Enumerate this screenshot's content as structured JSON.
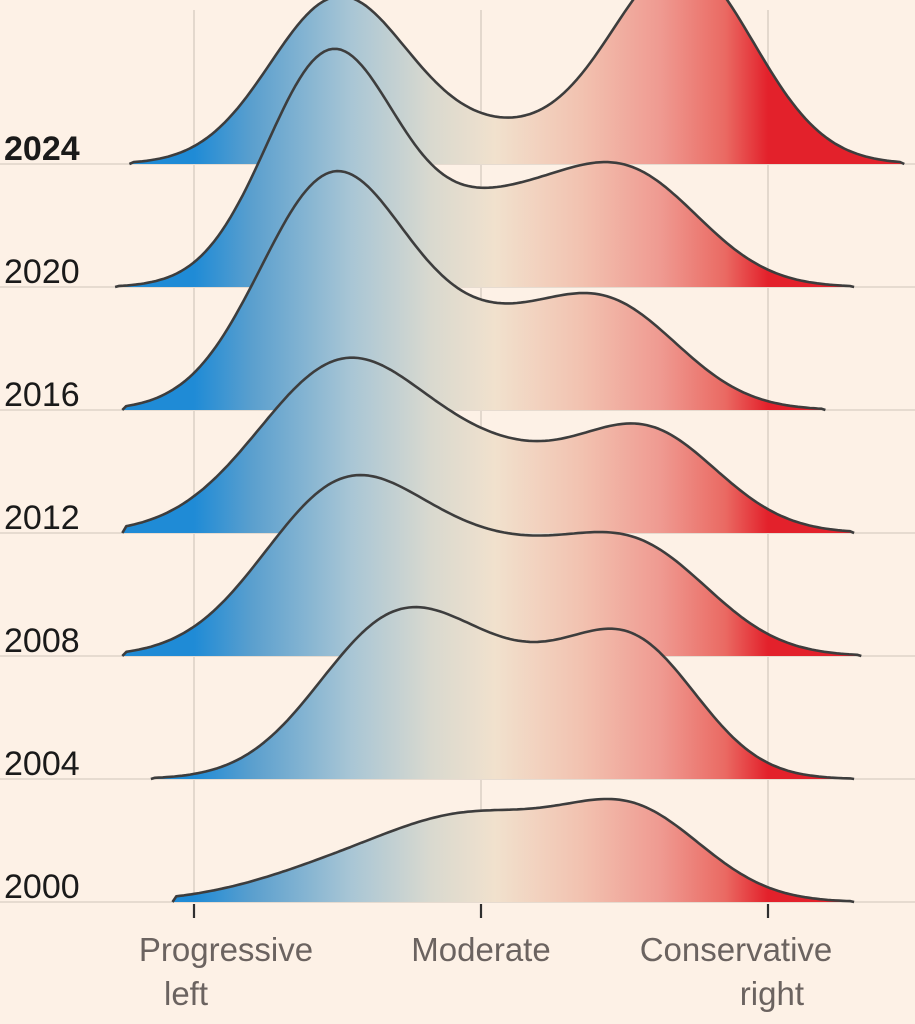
{
  "chart_data": {
    "type": "ridgeline",
    "title": "",
    "x_axis": {
      "range": [
        -1.1,
        1.45
      ],
      "ticks": [
        {
          "value": -0.4,
          "label_lines": [
            "Progressive",
            "left"
          ],
          "align": "left"
        },
        {
          "value": 0.0,
          "label_lines": [
            "Moderate"
          ],
          "align": "center"
        },
        {
          "value": 0.4,
          "label_lines": [
            "Conservative",
            "right"
          ],
          "align": "right"
        }
      ]
    },
    "colors": {
      "left": "#1f8bd6",
      "mid_left": "#b8cdd6",
      "center": "#f1e0cc",
      "mid_right": "#ef9d94",
      "right": "#e3212b",
      "outline": "#3d3d3d"
    },
    "gradient_stops": [
      {
        "x": -0.4,
        "color": "#1f8bd6"
      },
      {
        "x": -0.32,
        "color": "#5a9fce"
      },
      {
        "x": -0.18,
        "color": "#a9c6d5"
      },
      {
        "x": -0.07,
        "color": "#d9d9cf"
      },
      {
        "x": 0.02,
        "color": "#f1e1cd"
      },
      {
        "x": 0.14,
        "color": "#f2c2b0"
      },
      {
        "x": 0.25,
        "color": "#ef9a91"
      },
      {
        "x": 0.34,
        "color": "#ea6a63"
      },
      {
        "x": 0.4,
        "color": "#e3212b"
      }
    ],
    "series": [
      {
        "year": "2000",
        "bold": false,
        "x_start": -0.43,
        "x_end": 0.52,
        "components": [
          {
            "w": 0.26,
            "mu": -0.17,
            "sigma": 0.13
          },
          {
            "w": 0.44,
            "mu": 0.0,
            "sigma": 0.11
          },
          {
            "w": 0.6,
            "mu": 0.21,
            "sigma": 0.1
          }
        ]
      },
      {
        "year": "2004",
        "bold": false,
        "x_start": -0.46,
        "x_end": 0.52,
        "components": [
          {
            "w": 0.92,
            "mu": -0.13,
            "sigma": 0.105
          },
          {
            "w": 0.6,
            "mu": 0.05,
            "sigma": 0.12
          },
          {
            "w": 0.74,
            "mu": 0.22,
            "sigma": 0.09
          }
        ]
      },
      {
        "year": "2008",
        "bold": false,
        "x_start": -0.5,
        "x_end": 0.53,
        "components": [
          {
            "w": 1.0,
            "mu": -0.2,
            "sigma": 0.11
          },
          {
            "w": 0.65,
            "mu": 0.02,
            "sigma": 0.14
          },
          {
            "w": 0.56,
            "mu": 0.23,
            "sigma": 0.1
          }
        ]
      },
      {
        "year": "2012",
        "bold": false,
        "x_start": -0.5,
        "x_end": 0.52,
        "components": [
          {
            "w": 1.15,
            "mu": -0.19,
            "sigma": 0.12
          },
          {
            "w": 0.35,
            "mu": 0.03,
            "sigma": 0.1
          },
          {
            "w": 0.68,
            "mu": 0.23,
            "sigma": 0.1
          }
        ]
      },
      {
        "year": "2016",
        "bold": false,
        "x_start": -0.5,
        "x_end": 0.48,
        "components": [
          {
            "w": 1.52,
            "mu": -0.21,
            "sigma": 0.1
          },
          {
            "w": 0.45,
            "mu": -0.01,
            "sigma": 0.11
          },
          {
            "w": 0.66,
            "mu": 0.18,
            "sigma": 0.1
          }
        ]
      },
      {
        "year": "2020",
        "bold": false,
        "x_start": -0.51,
        "x_end": 0.52,
        "components": [
          {
            "w": 1.55,
            "mu": -0.21,
            "sigma": 0.09
          },
          {
            "w": 0.5,
            "mu": 0.02,
            "sigma": 0.11
          },
          {
            "w": 0.7,
            "mu": 0.21,
            "sigma": 0.1
          }
        ]
      },
      {
        "year": "2024",
        "bold": true,
        "x_start": -0.49,
        "x_end": 0.59,
        "components": [
          {
            "w": 1.1,
            "mu": -0.2,
            "sigma": 0.095
          },
          {
            "w": 0.2,
            "mu": 0.01,
            "sigma": 0.11
          },
          {
            "w": 1.35,
            "mu": 0.28,
            "sigma": 0.1
          }
        ]
      }
    ]
  }
}
